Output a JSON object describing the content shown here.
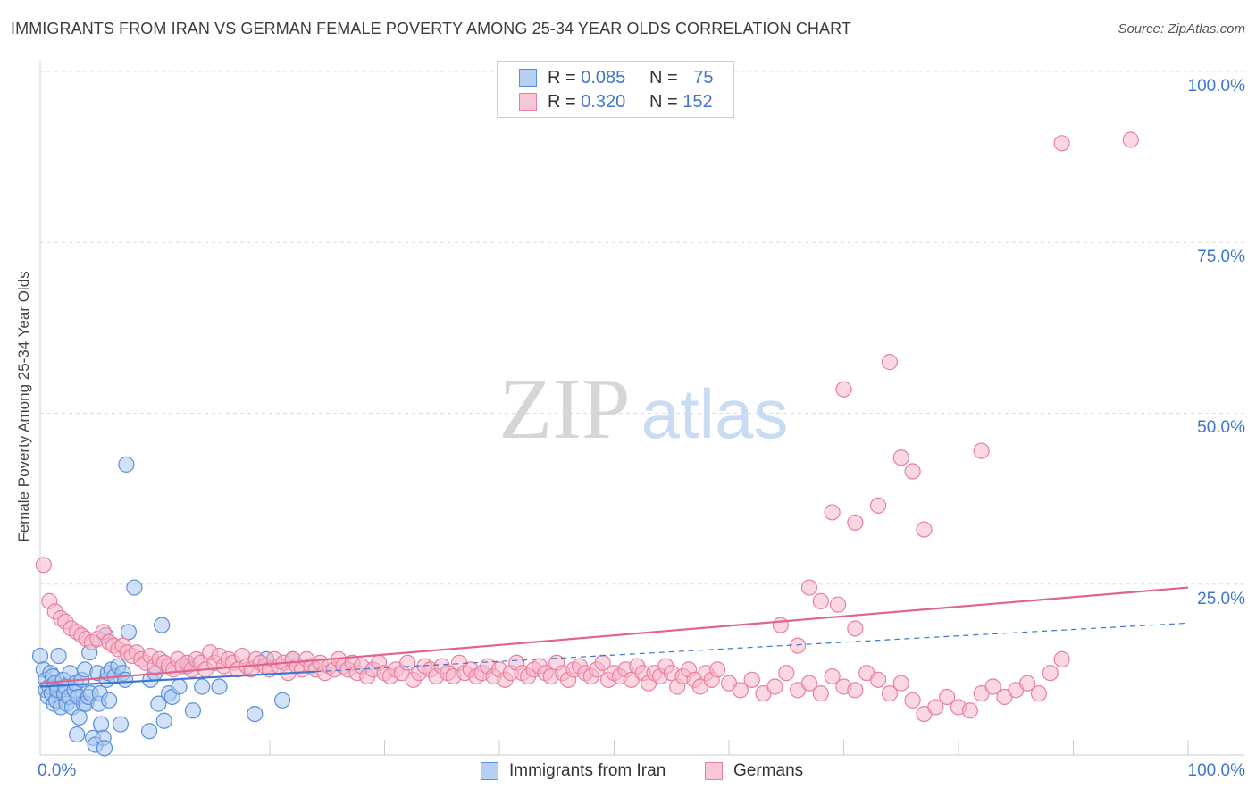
{
  "title": "IMMIGRANTS FROM IRAN VS GERMAN FEMALE POVERTY AMONG 25-34 YEAR OLDS CORRELATION CHART",
  "source": "Source: ZipAtlas.com",
  "watermark": {
    "zip": "ZIP",
    "atlas": "atlas"
  },
  "legend": {
    "rows": [
      {
        "r_label": "R =",
        "r_value": "0.085",
        "n_label": "N =",
        "n_value": "75"
      },
      {
        "r_label": "R =",
        "r_value": "0.320",
        "n_label": "N =",
        "n_value": "152"
      }
    ]
  },
  "colors": {
    "iran_fill": "#a9c8f3",
    "iran_stroke": "#5a90d8",
    "iran_line": "#3b76d4",
    "german_fill": "#f7b6cb",
    "german_stroke": "#e8809f",
    "german_line": "#e0648c",
    "tick_text": "#3d76cc",
    "grid": "#dddddd"
  },
  "chart_data": {
    "type": "scatter",
    "title": "IMMIGRANTS FROM IRAN VS GERMAN FEMALE POVERTY AMONG 25-34 YEAR OLDS CORRELATION CHART",
    "xlabel": "",
    "ylabel": "Female Poverty Among 25-34 Year Olds",
    "xlim": [
      0,
      100
    ],
    "ylim": [
      0,
      100
    ],
    "x_tick_labels": {
      "min": "0.0%",
      "max": "100.0%"
    },
    "y_ticks": [
      {
        "value": 25,
        "label": "25.0%"
      },
      {
        "value": 50,
        "label": "50.0%"
      },
      {
        "value": 75,
        "label": "75.0%"
      },
      {
        "value": 100,
        "label": "100.0%"
      }
    ],
    "series": [
      {
        "name": "Immigrants from Iran",
        "key": "iran",
        "R": 0.085,
        "N": 75,
        "trend": {
          "x0": 0,
          "y0": 10.0,
          "x1": 24,
          "y1": 12.2,
          "dashed_to_x": 100,
          "dashed_to_y": 19.3
        },
        "points": [
          [
            0.0,
            14.5
          ],
          [
            0.3,
            12.5
          ],
          [
            0.5,
            11.0
          ],
          [
            0.5,
            9.5
          ],
          [
            0.7,
            8.5
          ],
          [
            0.8,
            10.0
          ],
          [
            0.9,
            12.0
          ],
          [
            1.0,
            9.0
          ],
          [
            1.1,
            11.5
          ],
          [
            1.2,
            7.5
          ],
          [
            1.3,
            10.5
          ],
          [
            1.4,
            8.0
          ],
          [
            1.5,
            9.5
          ],
          [
            1.6,
            14.5
          ],
          [
            1.8,
            7.0
          ],
          [
            2.0,
            11.0
          ],
          [
            2.1,
            9.0
          ],
          [
            2.2,
            10.0
          ],
          [
            2.3,
            7.5
          ],
          [
            2.5,
            8.5
          ],
          [
            2.6,
            12.0
          ],
          [
            2.8,
            7.0
          ],
          [
            3.0,
            9.5
          ],
          [
            3.1,
            10.5
          ],
          [
            3.2,
            3.0
          ],
          [
            3.3,
            8.5
          ],
          [
            3.4,
            5.5
          ],
          [
            3.6,
            11.0
          ],
          [
            3.8,
            7.5
          ],
          [
            3.9,
            12.5
          ],
          [
            4.0,
            7.5
          ],
          [
            4.2,
            8.5
          ],
          [
            4.3,
            15.0
          ],
          [
            4.4,
            9.0
          ],
          [
            4.6,
            2.5
          ],
          [
            4.8,
            1.5
          ],
          [
            5.0,
            12.0
          ],
          [
            5.1,
            7.5
          ],
          [
            5.2,
            9.0
          ],
          [
            5.3,
            4.5
          ],
          [
            5.5,
            2.5
          ],
          [
            5.6,
            1.0
          ],
          [
            5.7,
            17.5
          ],
          [
            5.8,
            11.0
          ],
          [
            5.9,
            12.0
          ],
          [
            6.0,
            8.0
          ],
          [
            6.2,
            12.5
          ],
          [
            6.5,
            11.5
          ],
          [
            6.8,
            13.0
          ],
          [
            7.0,
            4.5
          ],
          [
            7.2,
            12.0
          ],
          [
            7.4,
            11.0
          ],
          [
            7.5,
            42.5
          ],
          [
            7.7,
            18.0
          ],
          [
            8.2,
            24.5
          ],
          [
            9.5,
            3.5
          ],
          [
            9.6,
            11.0
          ],
          [
            10.0,
            12.0
          ],
          [
            10.3,
            7.5
          ],
          [
            10.6,
            19.0
          ],
          [
            10.8,
            5.0
          ],
          [
            11.2,
            9.0
          ],
          [
            11.5,
            8.5
          ],
          [
            12.1,
            10.0
          ],
          [
            12.8,
            13.0
          ],
          [
            13.3,
            6.5
          ],
          [
            14.1,
            10.0
          ],
          [
            15.6,
            10.0
          ],
          [
            18.7,
            6.0
          ],
          [
            19.7,
            14.0
          ],
          [
            21.1,
            8.0
          ],
          [
            22.0,
            14.0
          ]
        ]
      },
      {
        "name": "Germans",
        "key": "german",
        "R": 0.32,
        "N": 152,
        "trend": {
          "x0": 0,
          "y0": 10.5,
          "x1": 100,
          "y1": 24.5
        },
        "points": [
          [
            0.3,
            27.8
          ],
          [
            0.8,
            22.5
          ],
          [
            1.3,
            21.0
          ],
          [
            1.8,
            20.0
          ],
          [
            2.2,
            19.5
          ],
          [
            2.7,
            18.5
          ],
          [
            3.2,
            18.0
          ],
          [
            3.6,
            17.5
          ],
          [
            4.0,
            17.0
          ],
          [
            4.5,
            16.5
          ],
          [
            5.0,
            17.0
          ],
          [
            5.5,
            18.0
          ],
          [
            6.0,
            16.5
          ],
          [
            6.4,
            16.0
          ],
          [
            6.8,
            15.5
          ],
          [
            7.2,
            16.0
          ],
          [
            7.6,
            15.0
          ],
          [
            8.0,
            14.5
          ],
          [
            8.4,
            15.0
          ],
          [
            8.8,
            14.0
          ],
          [
            9.2,
            13.5
          ],
          [
            9.6,
            14.5
          ],
          [
            10.0,
            13.0
          ],
          [
            10.4,
            14.0
          ],
          [
            10.8,
            13.5
          ],
          [
            11.2,
            13.0
          ],
          [
            11.6,
            12.5
          ],
          [
            12.0,
            14.0
          ],
          [
            12.4,
            13.0
          ],
          [
            12.8,
            13.5
          ],
          [
            13.2,
            12.5
          ],
          [
            13.6,
            14.0
          ],
          [
            14.0,
            13.5
          ],
          [
            14.4,
            12.5
          ],
          [
            14.8,
            15.0
          ],
          [
            15.2,
            13.5
          ],
          [
            15.6,
            14.5
          ],
          [
            16.0,
            13.0
          ],
          [
            16.4,
            14.0
          ],
          [
            16.8,
            13.5
          ],
          [
            17.2,
            12.5
          ],
          [
            17.6,
            14.5
          ],
          [
            18.0,
            13.0
          ],
          [
            18.4,
            12.5
          ],
          [
            18.8,
            14.0
          ],
          [
            19.2,
            13.5
          ],
          [
            19.6,
            13.0
          ],
          [
            20.0,
            12.5
          ],
          [
            20.4,
            14.0
          ],
          [
            20.8,
            13.0
          ],
          [
            21.2,
            13.5
          ],
          [
            21.6,
            12.0
          ],
          [
            22.0,
            14.0
          ],
          [
            22.4,
            13.0
          ],
          [
            22.8,
            12.5
          ],
          [
            23.2,
            14.0
          ],
          [
            23.6,
            13.0
          ],
          [
            24.0,
            12.5
          ],
          [
            24.4,
            13.5
          ],
          [
            24.8,
            12.0
          ],
          [
            25.2,
            13.0
          ],
          [
            25.6,
            12.5
          ],
          [
            26.0,
            14.0
          ],
          [
            26.4,
            13.0
          ],
          [
            26.8,
            12.5
          ],
          [
            27.2,
            13.5
          ],
          [
            27.6,
            12.0
          ],
          [
            28.0,
            13.0
          ],
          [
            28.5,
            11.5
          ],
          [
            29.0,
            12.5
          ],
          [
            29.5,
            13.5
          ],
          [
            30.0,
            12.0
          ],
          [
            30.5,
            11.5
          ],
          [
            31.0,
            12.5
          ],
          [
            31.5,
            12.0
          ],
          [
            32.0,
            13.5
          ],
          [
            32.5,
            11.0
          ],
          [
            33.0,
            12.0
          ],
          [
            33.5,
            13.0
          ],
          [
            34.0,
            12.5
          ],
          [
            34.5,
            11.5
          ],
          [
            35.0,
            13.0
          ],
          [
            35.5,
            12.0
          ],
          [
            36.0,
            11.5
          ],
          [
            36.5,
            13.5
          ],
          [
            37.0,
            12.0
          ],
          [
            37.5,
            12.5
          ],
          [
            38.0,
            11.5
          ],
          [
            38.5,
            12.0
          ],
          [
            39.0,
            13.0
          ],
          [
            39.5,
            11.5
          ],
          [
            40.0,
            12.5
          ],
          [
            40.5,
            11.0
          ],
          [
            41.0,
            12.0
          ],
          [
            41.5,
            13.5
          ],
          [
            42.0,
            12.0
          ],
          [
            42.5,
            11.5
          ],
          [
            43.0,
            12.5
          ],
          [
            43.5,
            13.0
          ],
          [
            44.0,
            12.0
          ],
          [
            44.5,
            11.5
          ],
          [
            45.0,
            13.5
          ],
          [
            45.5,
            12.0
          ],
          [
            46.0,
            11.0
          ],
          [
            46.5,
            12.5
          ],
          [
            47.0,
            13.0
          ],
          [
            47.5,
            12.0
          ],
          [
            48.0,
            11.5
          ],
          [
            48.5,
            12.5
          ],
          [
            49.0,
            13.5
          ],
          [
            49.5,
            11.0
          ],
          [
            50.0,
            12.0
          ],
          [
            50.5,
            11.5
          ],
          [
            51.0,
            12.5
          ],
          [
            51.5,
            11.0
          ],
          [
            52.0,
            13.0
          ],
          [
            52.5,
            12.0
          ],
          [
            53.0,
            10.5
          ],
          [
            53.5,
            12.0
          ],
          [
            54.0,
            11.5
          ],
          [
            54.5,
            13.0
          ],
          [
            55.0,
            12.0
          ],
          [
            55.5,
            10.0
          ],
          [
            56.0,
            11.5
          ],
          [
            56.5,
            12.5
          ],
          [
            57.0,
            11.0
          ],
          [
            57.5,
            10.0
          ],
          [
            58.0,
            12.0
          ],
          [
            58.5,
            11.0
          ],
          [
            59.0,
            12.5
          ],
          [
            60.0,
            10.5
          ],
          [
            61.0,
            9.5
          ],
          [
            62.0,
            11.0
          ],
          [
            63.0,
            9.0
          ],
          [
            64.0,
            10.0
          ],
          [
            65.0,
            12.0
          ],
          [
            66.0,
            9.5
          ],
          [
            67.0,
            10.5
          ],
          [
            68.0,
            9.0
          ],
          [
            69.0,
            11.5
          ],
          [
            70.0,
            10.0
          ],
          [
            71.0,
            9.5
          ],
          [
            72.0,
            12.0
          ],
          [
            73.0,
            11.0
          ],
          [
            74.0,
            9.0
          ],
          [
            75.0,
            10.5
          ],
          [
            76.0,
            8.0
          ],
          [
            77.0,
            6.0
          ],
          [
            78.0,
            7.0
          ],
          [
            79.0,
            8.5
          ],
          [
            80.0,
            7.0
          ],
          [
            81.0,
            6.5
          ],
          [
            82.0,
            9.0
          ],
          [
            83.0,
            10.0
          ],
          [
            84.0,
            8.5
          ],
          [
            85.0,
            9.5
          ],
          [
            86.0,
            10.5
          ],
          [
            87.0,
            9.0
          ],
          [
            88.0,
            12.0
          ],
          [
            89.0,
            14.0
          ],
          [
            89.0,
            89.5
          ],
          [
            95.0,
            90.0
          ],
          [
            69.0,
            35.5
          ],
          [
            70.0,
            53.5
          ],
          [
            71.0,
            34.0
          ],
          [
            73.0,
            36.5
          ],
          [
            74.0,
            57.5
          ],
          [
            75.0,
            43.5
          ],
          [
            76.0,
            41.5
          ],
          [
            77.0,
            33.0
          ],
          [
            82.0,
            44.5
          ],
          [
            69.5,
            22.0
          ],
          [
            71.0,
            18.5
          ],
          [
            64.5,
            19.0
          ],
          [
            66.0,
            16.0
          ],
          [
            67.0,
            24.5
          ],
          [
            68.0,
            22.5
          ]
        ]
      }
    ]
  },
  "bottom_legend": {
    "iran": "Immigrants from Iran",
    "german": "Germans"
  }
}
